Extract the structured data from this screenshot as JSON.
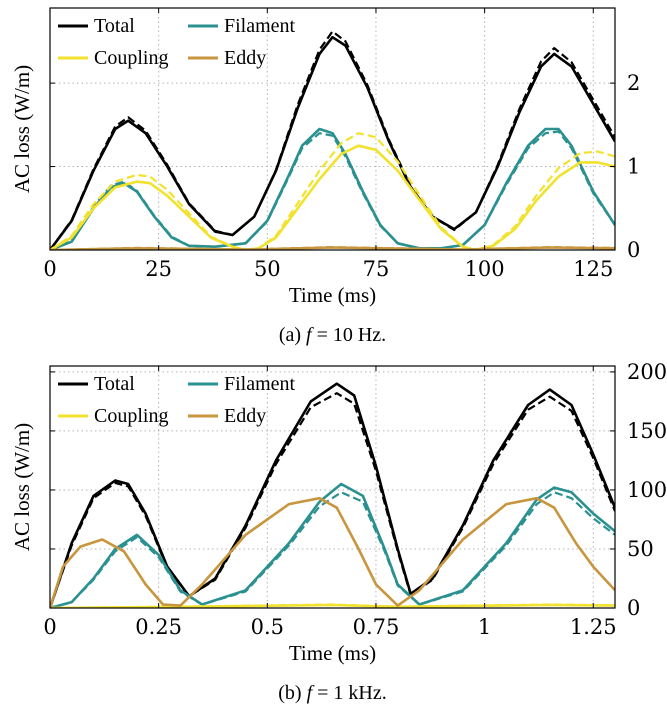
{
  "chart_data": [
    {
      "type": "line",
      "caption": "(a) f = 10 Hz.",
      "caption_parts": {
        "prefix": "(a) ",
        "var": "f",
        "rest": " = 10 Hz."
      },
      "xlabel": "Time (ms)",
      "ylabel": "AC loss (W/m)",
      "xlim": [
        0,
        130
      ],
      "ylim": [
        0,
        2.9
      ],
      "xticks": [
        0,
        25,
        50,
        75,
        100,
        125
      ],
      "xtick_labels": [
        "0",
        "25",
        "50",
        "75",
        "100",
        "125"
      ],
      "yticks": [
        0,
        1,
        2
      ],
      "ytick_labels": [
        "0",
        "1",
        "2"
      ],
      "grid": true,
      "legend": {
        "placement": "top-left",
        "columns": 2
      },
      "line_styles": [
        "solid",
        "dashed"
      ],
      "series": [
        {
          "name": "Total",
          "color": "#000000",
          "legend_order": 0,
          "x": [
            0,
            5,
            10,
            15,
            18,
            22,
            27,
            32,
            38,
            42,
            47,
            52,
            57,
            62,
            65,
            68,
            73,
            78,
            83,
            88,
            93,
            98,
            103,
            108,
            113,
            116,
            120,
            125,
            130
          ],
          "solid": [
            0,
            0.35,
            0.95,
            1.45,
            1.55,
            1.4,
            1.0,
            0.55,
            0.22,
            0.18,
            0.4,
            0.95,
            1.7,
            2.35,
            2.55,
            2.45,
            1.95,
            1.3,
            0.75,
            0.4,
            0.25,
            0.45,
            1.0,
            1.65,
            2.2,
            2.35,
            2.2,
            1.75,
            1.3
          ],
          "dashed": [
            0,
            0.36,
            0.97,
            1.48,
            1.59,
            1.43,
            1.02,
            0.56,
            0.23,
            0.18,
            0.4,
            0.96,
            1.74,
            2.4,
            2.62,
            2.5,
            1.98,
            1.32,
            0.76,
            0.4,
            0.24,
            0.45,
            1.02,
            1.69,
            2.26,
            2.42,
            2.25,
            1.8,
            1.35
          ]
        },
        {
          "name": "Filament",
          "color": "#2a9090",
          "legend_order": 1,
          "x": [
            0,
            5,
            10,
            14,
            17,
            20,
            24,
            28,
            32,
            38,
            45,
            50,
            55,
            58,
            62,
            65,
            68,
            72,
            76,
            80,
            85,
            90,
            95,
            100,
            105,
            110,
            114,
            117,
            120,
            125,
            130
          ],
          "solid": [
            0,
            0.1,
            0.5,
            0.75,
            0.8,
            0.7,
            0.4,
            0.15,
            0.05,
            0.04,
            0.08,
            0.35,
            0.9,
            1.25,
            1.45,
            1.4,
            1.15,
            0.7,
            0.3,
            0.08,
            0.02,
            0.02,
            0.06,
            0.3,
            0.8,
            1.25,
            1.45,
            1.45,
            1.25,
            0.7,
            0.3
          ],
          "dashed": [
            0,
            0.11,
            0.52,
            0.77,
            0.82,
            0.71,
            0.41,
            0.16,
            0.05,
            0.04,
            0.08,
            0.34,
            0.88,
            1.22,
            1.4,
            1.37,
            1.12,
            0.68,
            0.29,
            0.08,
            0.02,
            0.02,
            0.06,
            0.3,
            0.78,
            1.22,
            1.4,
            1.42,
            1.22,
            0.68,
            0.3
          ]
        },
        {
          "name": "Coupling",
          "color": "#f2e22e",
          "legend_order": 2,
          "x": [
            0,
            5,
            10,
            15,
            20,
            23,
            27,
            32,
            37,
            42,
            45,
            48,
            52,
            57,
            62,
            67,
            71,
            75,
            80,
            85,
            90,
            95,
            98,
            102,
            107,
            112,
            117,
            122,
            126,
            130
          ],
          "solid": [
            0,
            0.15,
            0.5,
            0.75,
            0.82,
            0.8,
            0.65,
            0.4,
            0.15,
            0.04,
            0.0,
            0.02,
            0.15,
            0.5,
            0.85,
            1.15,
            1.25,
            1.2,
            0.95,
            0.6,
            0.25,
            0.04,
            0.0,
            0.05,
            0.25,
            0.6,
            0.88,
            1.05,
            1.05,
            1.0
          ],
          "dashed": [
            0,
            0.17,
            0.55,
            0.82,
            0.9,
            0.88,
            0.72,
            0.44,
            0.16,
            0.04,
            0.0,
            0.02,
            0.17,
            0.56,
            0.95,
            1.28,
            1.4,
            1.35,
            1.06,
            0.66,
            0.27,
            0.04,
            0.0,
            0.06,
            0.28,
            0.66,
            0.98,
            1.16,
            1.18,
            1.12
          ]
        },
        {
          "name": "Eddy",
          "color": "#c8963e",
          "legend_order": 3,
          "x": [
            0,
            20,
            45,
            65,
            95,
            115,
            130
          ],
          "solid": [
            0,
            0.02,
            0.005,
            0.03,
            0.005,
            0.03,
            0.02
          ],
          "dashed": [
            0,
            0.025,
            0.006,
            0.035,
            0.006,
            0.035,
            0.025
          ]
        }
      ]
    },
    {
      "type": "line",
      "caption": "(b) f = 1 kHz.",
      "caption_parts": {
        "prefix": "(b) ",
        "var": "f",
        "rest": " = 1 kHz."
      },
      "xlabel": "Time (ms)",
      "ylabel": "AC loss (W/m)",
      "xlim": [
        0,
        1.3
      ],
      "ylim": [
        0,
        205
      ],
      "xticks": [
        0,
        0.25,
        0.5,
        0.75,
        1,
        1.25
      ],
      "xtick_labels": [
        "0",
        "0.25",
        "0.5",
        "0.75",
        "1",
        "1.25"
      ],
      "yticks": [
        0,
        50,
        100,
        150,
        200
      ],
      "ytick_labels": [
        "0",
        "50",
        "100",
        "150",
        "200"
      ],
      "grid": true,
      "legend": {
        "placement": "top-left",
        "columns": 2
      },
      "line_styles": [
        "solid",
        "dashed"
      ],
      "series": [
        {
          "name": "Total",
          "color": "#000000",
          "legend_order": 0,
          "x": [
            0,
            0.05,
            0.1,
            0.15,
            0.18,
            0.22,
            0.27,
            0.32,
            0.38,
            0.45,
            0.52,
            0.6,
            0.66,
            0.7,
            0.75,
            0.8,
            0.83,
            0.88,
            0.95,
            1.02,
            1.1,
            1.15,
            1.2,
            1.25,
            1.3
          ],
          "solid": [
            0,
            55,
            95,
            108,
            105,
            80,
            35,
            10,
            25,
            70,
            125,
            175,
            190,
            180,
            120,
            50,
            12,
            25,
            70,
            125,
            172,
            185,
            172,
            130,
            85
          ],
          "dashed": [
            0,
            53,
            93,
            106,
            103,
            78,
            34,
            10,
            24,
            68,
            122,
            170,
            182,
            173,
            116,
            48,
            11,
            24,
            68,
            122,
            168,
            179,
            167,
            127,
            82
          ]
        },
        {
          "name": "Filament",
          "color": "#2a9090",
          "legend_order": 1,
          "x": [
            0,
            0.05,
            0.1,
            0.15,
            0.2,
            0.25,
            0.3,
            0.35,
            0.45,
            0.55,
            0.62,
            0.67,
            0.72,
            0.77,
            0.8,
            0.85,
            0.95,
            1.05,
            1.12,
            1.16,
            1.2,
            1.25,
            1.3
          ],
          "solid": [
            0,
            5,
            25,
            50,
            62,
            45,
            15,
            3,
            15,
            55,
            90,
            105,
            95,
            50,
            20,
            3,
            15,
            55,
            92,
            102,
            98,
            80,
            65
          ],
          "dashed": [
            0,
            5,
            24,
            48,
            60,
            43,
            14,
            3,
            14,
            53,
            86,
            98,
            90,
            48,
            19,
            3,
            14,
            53,
            88,
            98,
            93,
            76,
            62
          ]
        },
        {
          "name": "Coupling",
          "color": "#f2e22e",
          "legend_order": 2,
          "x": [
            0,
            0.3,
            0.65,
            0.8,
            1.15,
            1.3
          ],
          "solid": [
            0,
            1,
            2.5,
            1,
            2.5,
            2
          ],
          "dashed": [
            0,
            1.2,
            3,
            1.2,
            3,
            2.4
          ]
        },
        {
          "name": "Eddy",
          "color": "#c8963e",
          "legend_order": 3,
          "x": [
            0,
            0.03,
            0.07,
            0.12,
            0.17,
            0.22,
            0.26,
            0.3,
            0.35,
            0.45,
            0.55,
            0.62,
            0.66,
            0.71,
            0.75,
            0.8,
            0.85,
            0.95,
            1.05,
            1.12,
            1.16,
            1.21,
            1.25,
            1.3
          ],
          "solid": [
            0,
            35,
            52,
            58,
            48,
            20,
            3,
            2,
            20,
            62,
            88,
            93,
            85,
            50,
            20,
            2,
            15,
            58,
            88,
            93,
            85,
            55,
            35,
            15
          ],
          "dashed": [
            0,
            35,
            52,
            58,
            48,
            20,
            3,
            2,
            20,
            62,
            88,
            93,
            85,
            50,
            20,
            2,
            15,
            58,
            88,
            93,
            85,
            55,
            35,
            15
          ]
        }
      ]
    }
  ]
}
